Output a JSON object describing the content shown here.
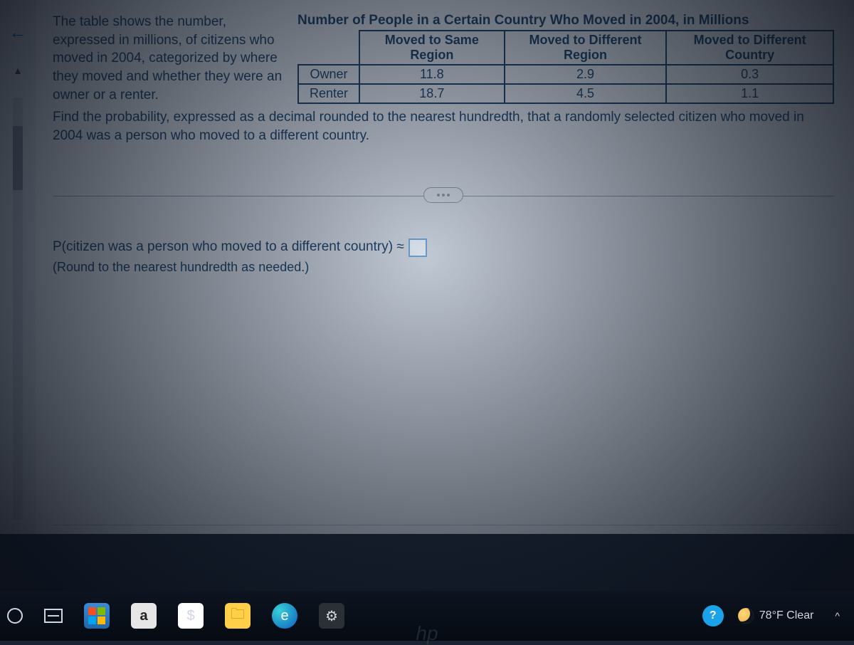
{
  "problem": {
    "intro": "The table shows the number, expressed in millions, of citizens who moved in 2004, categorized by where they moved and whether they were an owner or a renter.",
    "question": "Find the probability, expressed as a decimal rounded to the nearest hundredth, that a randomly selected citizen who moved in 2004 was a person who moved to a different country.",
    "table_title": "Number of People in a Certain Country Who Moved in 2004, in Millions",
    "columns": [
      "Moved to Same Region",
      "Moved to Different Region",
      "Moved to Different Country"
    ],
    "row_labels": [
      "Owner",
      "Renter"
    ],
    "rows": [
      [
        "11.8",
        "2.9",
        "0.3"
      ],
      [
        "18.7",
        "4.5",
        "1.1"
      ]
    ],
    "answer_label": "P(citizen was a person who moved to a different country) ≈",
    "round_note": "(Round to the nearest hundredth as needed.)"
  },
  "taskbar": {
    "apps": {
      "a_label": "a",
      "store_glyph": "$"
    },
    "help_glyph": "?",
    "weather_text": "78°F  Clear"
  },
  "colors": {
    "text_primary": "#173a5e",
    "link_blue": "#0b63c4",
    "panel_bg": "#d8dce2",
    "taskbar_bg": "#0d1420",
    "answer_box_border": "#6fa6d9"
  }
}
